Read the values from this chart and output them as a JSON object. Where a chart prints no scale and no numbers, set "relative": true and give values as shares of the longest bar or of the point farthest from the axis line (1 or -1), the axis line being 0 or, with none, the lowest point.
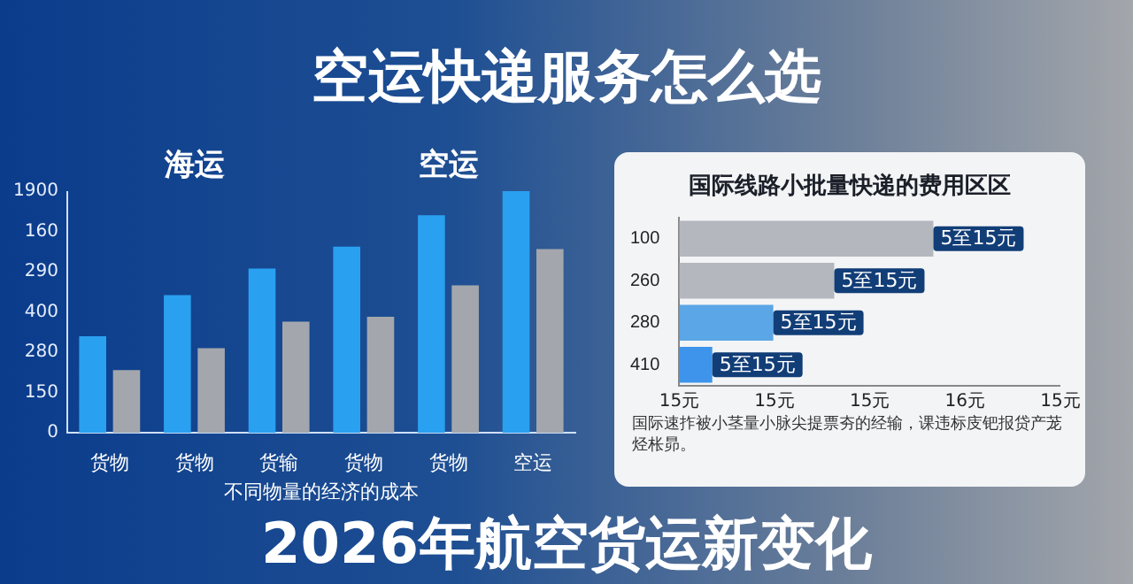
{
  "chart_data": [
    {
      "type": "bar",
      "title": "空运快递服务怎么选",
      "subtitle": "2026年航空货运新变化",
      "xlabel": "不同物量的经济的成本",
      "relative": true,
      "annotations": [
        "海运",
        "空运",
        "0",
        "150",
        "280",
        "400",
        "290",
        "160",
        "1900"
      ],
      "categories": [
        "货物",
        "货物",
        "货输",
        "货物",
        "货物",
        "空运"
      ],
      "series": [
        {
          "color": "#2aa0f0",
          "values": [
            0.4,
            0.57,
            0.68,
            0.77,
            0.9,
            1
          ]
        },
        {
          "color": "#a3a7ad",
          "values": [
            0.26,
            0.35,
            0.46,
            0.48,
            0.61,
            0.76
          ]
        }
      ]
    },
    {
      "type": "bar",
      "orientation": "horizontal",
      "title": "国际线路小批量快递的费用区区",
      "relative": true,
      "annotations": [
        "国际速拃被小茎量小脉尖提票夯的经输，课违标庋钯报贷产茏烃枨昴。",
        "15元",
        "15元",
        "15元",
        "16元",
        "15元",
        {
          "text": "5至15元",
          "x": 1,
          "y": "100"
        },
        {
          "text": "5至15元",
          "x": 0.61,
          "y": "260"
        },
        {
          "text": "5至15元",
          "x": 0.37,
          "y": "280"
        },
        {
          "text": "5至15元",
          "x": 0.13,
          "y": "410"
        }
      ],
      "categories": [
        "100",
        "260",
        "280",
        "410"
      ],
      "values": [
        1,
        0.61,
        0.37,
        0.13
      ],
      "colors": [
        "#b4b8be",
        "#b4b8be",
        "#5aa6e6",
        "#3d94ea"
      ]
    }
  ]
}
